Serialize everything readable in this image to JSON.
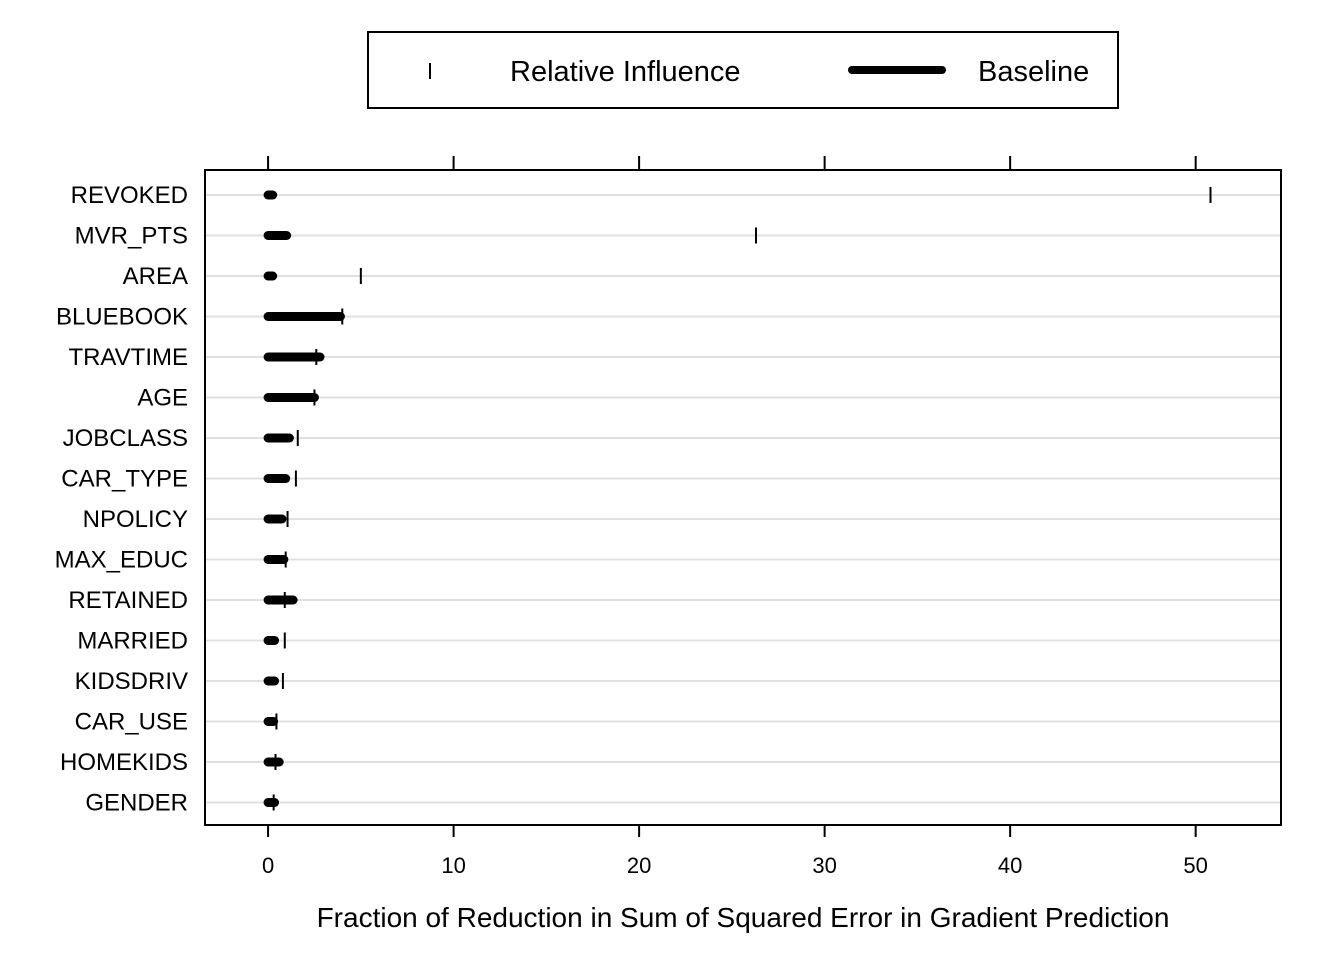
{
  "chart_data": {
    "type": "dot",
    "xlabel": "Fraction of Reduction in Sum of Squared Error in Gradient Prediction",
    "ylabel": "",
    "xlim": [
      -3.4,
      54.6
    ],
    "xticks": [
      0,
      10,
      20,
      30,
      40,
      50
    ],
    "grid": "horizontal",
    "legend_position": "top",
    "categories": [
      "REVOKED",
      "MVR_PTS",
      "AREA",
      "BLUEBOOK",
      "TRAVTIME",
      "AGE",
      "JOBCLASS",
      "CAR_TYPE",
      "NPOLICY",
      "MAX_EDUC",
      "RETAINED",
      "MARRIED",
      "KIDSDRIV",
      "CAR_USE",
      "HOMEKIDS",
      "GENDER"
    ],
    "series": [
      {
        "name": "Relative Influence",
        "marker": "tick",
        "values": [
          50.8,
          26.3,
          5.0,
          4.0,
          2.6,
          2.5,
          1.6,
          1.5,
          1.05,
          0.95,
          0.9,
          0.9,
          0.8,
          0.45,
          0.4,
          0.3
        ]
      },
      {
        "name": "Baseline",
        "marker": "thick-line",
        "ranges": [
          [
            0,
            0.25
          ],
          [
            0,
            1.0
          ],
          [
            0,
            0.25
          ],
          [
            0,
            3.9
          ],
          [
            0,
            2.8
          ],
          [
            0,
            2.5
          ],
          [
            0,
            1.15
          ],
          [
            0,
            0.95
          ],
          [
            0,
            0.75
          ],
          [
            0,
            0.85
          ],
          [
            0,
            1.35
          ],
          [
            0,
            0.35
          ],
          [
            0,
            0.35
          ],
          [
            0,
            0.3
          ],
          [
            0,
            0.6
          ],
          [
            0,
            0.35
          ]
        ]
      }
    ],
    "colors": {
      "line": "#000000",
      "grid": "#e0e0e0",
      "background": "#ffffff"
    }
  }
}
